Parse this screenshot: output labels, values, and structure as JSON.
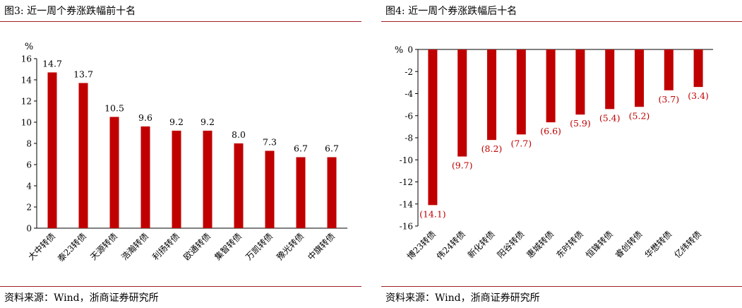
{
  "chart_data": [
    {
      "type": "bar",
      "title": "图3:  近一周个券涨跌幅前十名",
      "ylabel": "%",
      "ylim": [
        0,
        16
      ],
      "yticks": [
        "0",
        "2",
        "4",
        "6",
        "8",
        "10",
        "12",
        "14",
        "16"
      ],
      "categories": [
        "大中转债",
        "泰23转债",
        "天源转债",
        "浩瀚转债",
        "利扬转债",
        "欧通转债",
        "集智转债",
        "万凯转债",
        "豫光转债",
        "中旗转债"
      ],
      "values": [
        14.7,
        13.7,
        10.5,
        9.6,
        9.2,
        9.2,
        8.0,
        7.3,
        6.7,
        6.7
      ],
      "data_labels": [
        "14.7",
        "13.7",
        "10.5",
        "9.6",
        "9.2",
        "9.2",
        "8.0",
        "7.3",
        "6.7",
        "6.7"
      ],
      "bar_color": "#c00000",
      "label_color": "#000000",
      "grid": false,
      "source": "资料来源：Wind，浙商证券研究所"
    },
    {
      "type": "bar",
      "title": "图4:  近一周个券涨跌幅后十名",
      "ylabel": "%",
      "ylim": [
        -16,
        0
      ],
      "yticks": [
        "0",
        "-2",
        "-4",
        "-6",
        "-8",
        "-10",
        "-12",
        "-14",
        "-16"
      ],
      "categories": [
        "博23转债",
        "伟24转债",
        "新化转债",
        "阳谷转债",
        "惠城转债",
        "东时转债",
        "恒锋转债",
        "睿创转债",
        "华懋转债",
        "亿纬转债"
      ],
      "values": [
        -14.1,
        -9.7,
        -8.2,
        -7.7,
        -6.6,
        -5.9,
        -5.4,
        -5.2,
        -3.7,
        -3.4
      ],
      "data_labels": [
        "(14.1)",
        "(9.7)",
        "(8.2)",
        "(7.7)",
        "(6.6)",
        "(5.9)",
        "(5.4)",
        "(5.2)",
        "(3.7)",
        "(3.4)"
      ],
      "bar_color": "#c00000",
      "label_color": "#c00000",
      "grid": false,
      "source": "资料来源：Wind，浙商证券研究所"
    }
  ]
}
